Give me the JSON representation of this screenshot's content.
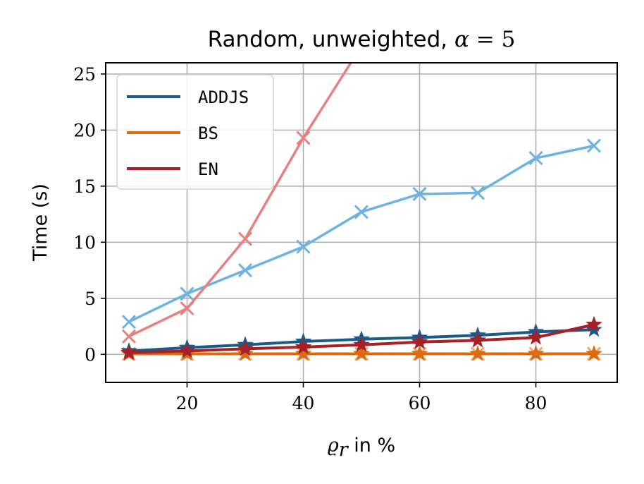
{
  "chart_data": {
    "type": "line",
    "title": {
      "prefix": "Random, unweighted, ",
      "symbol": "α",
      "equals": " = ",
      "value": "5"
    },
    "xlabel": {
      "symbol": "ϱ",
      "subscript": "r",
      "suffix": " in %"
    },
    "ylabel": "Time (s)",
    "xlim": [
      6,
      94
    ],
    "ylim": [
      -2.5,
      26
    ],
    "xticks": [
      20,
      40,
      60,
      80
    ],
    "yticks": [
      0,
      5,
      10,
      15,
      20,
      25
    ],
    "grid": true,
    "legend": {
      "placement": "top-left"
    },
    "x": [
      10,
      20,
      30,
      40,
      50,
      60,
      70,
      80,
      90
    ],
    "series": [
      {
        "name": "ADDJS",
        "color": "#1b5a8a",
        "marker": "star",
        "legend": true,
        "values": [
          0.3,
          0.6,
          0.85,
          1.15,
          1.35,
          1.5,
          1.7,
          2.0,
          2.2
        ]
      },
      {
        "name": "BS",
        "color": "#de6a10",
        "marker": "star",
        "legend": true,
        "values": [
          0.05,
          0.05,
          0.05,
          0.05,
          0.05,
          0.05,
          0.05,
          0.05,
          0.05
        ]
      },
      {
        "name": "EN",
        "color": "#a62025",
        "marker": "star",
        "legend": true,
        "values": [
          0.15,
          0.3,
          0.5,
          0.65,
          0.85,
          1.1,
          1.25,
          1.5,
          2.65
        ]
      },
      {
        "color": "#6cb3e3",
        "marker": "x",
        "legend": false,
        "values": [
          2.9,
          5.4,
          7.5,
          9.6,
          12.7,
          14.3,
          14.4,
          17.5,
          18.6
        ]
      },
      {
        "color": "#f5a966",
        "marker": "x",
        "legend": false,
        "values": [
          0.05,
          0.05,
          0.05,
          0.05,
          0.05,
          0.05,
          0.05,
          0.05,
          0.05
        ]
      },
      {
        "color": "#e88080",
        "marker": "x",
        "legend": false,
        "values": [
          1.6,
          4.1,
          10.3,
          19.3,
          27.5,
          null,
          null,
          null,
          null
        ]
      }
    ]
  }
}
